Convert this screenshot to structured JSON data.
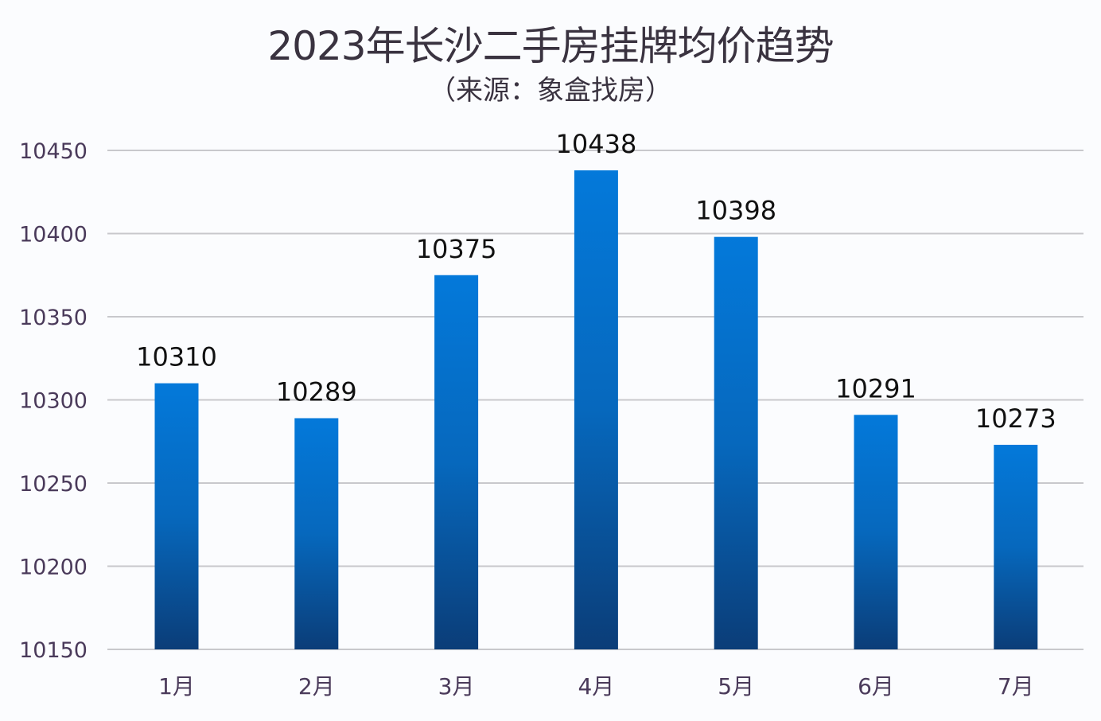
{
  "chart_data": {
    "type": "bar",
    "title": "2023年长沙二手房挂牌均价趋势",
    "subtitle": "（来源：象盒找房）",
    "categories": [
      "1月",
      "2月",
      "3月",
      "4月",
      "5月",
      "6月",
      "7月"
    ],
    "values": [
      10310,
      10289,
      10375,
      10438,
      10398,
      10291,
      10273
    ],
    "ylim": [
      10150,
      10450
    ],
    "yticks": [
      10150,
      10200,
      10250,
      10300,
      10350,
      10400,
      10450
    ],
    "grid": true,
    "data_labels": true,
    "colors": {
      "bar_top": "#0479da",
      "bar_bottom": "#0b3d78",
      "grid": "#c8c8cc",
      "text": "#4a3a5a"
    }
  }
}
